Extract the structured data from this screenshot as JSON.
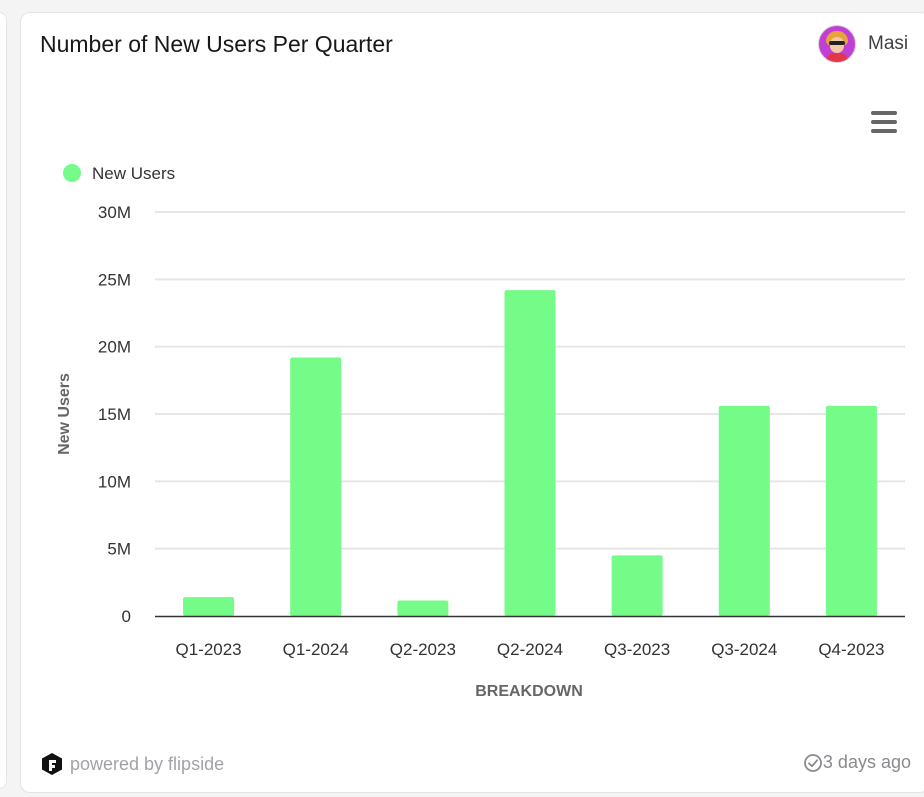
{
  "card": {
    "title": "Number of New Users Per Quarter",
    "author_name": "Masi",
    "powered_by": "powered by flipside",
    "updated": "3 days ago"
  },
  "icons": {
    "menu": "hamburger-menu-icon",
    "brand": "flipside-logo-icon",
    "clock": "clock-check-icon",
    "avatar": "user-avatar"
  },
  "colors": {
    "bar": "#75FB87",
    "axis": "#333333",
    "grid": "#e6e6e6",
    "text": "#333333"
  },
  "chart_data": {
    "type": "bar",
    "categories": [
      "Q1-2023",
      "Q1-2024",
      "Q2-2023",
      "Q2-2024",
      "Q3-2023",
      "Q3-2024",
      "Q4-2023"
    ],
    "series": [
      {
        "name": "New Users",
        "values": [
          1400000,
          19200000,
          1150000,
          24200000,
          4500000,
          15600000,
          15600000
        ]
      }
    ],
    "xlabel": "BREAKDOWN",
    "ylabel": "New Users",
    "ylim": [
      0,
      30000000
    ],
    "yticks": [
      "0",
      "5M",
      "10M",
      "15M",
      "20M",
      "25M",
      "30M"
    ],
    "legend": "top-left",
    "grid": true
  }
}
